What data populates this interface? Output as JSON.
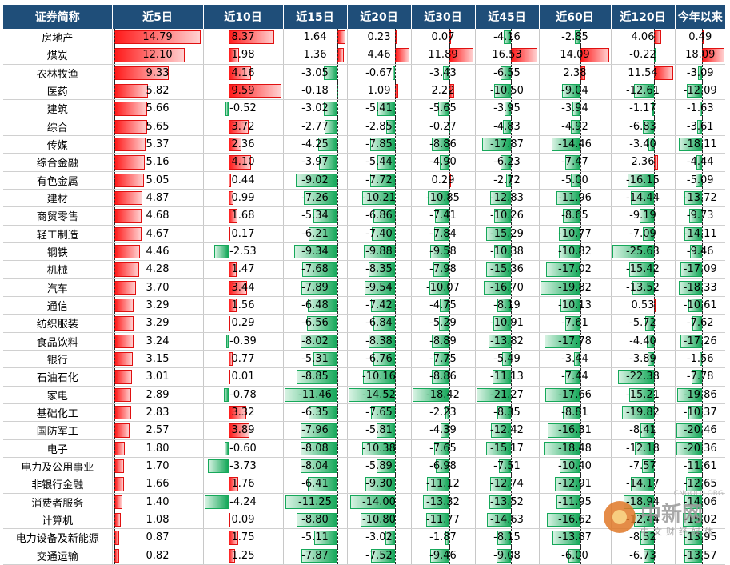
{
  "headers": [
    "证券简称",
    "近5日",
    "近10日",
    "近15日",
    "近20日",
    "近30日",
    "近45日",
    "近60日",
    "近120日",
    "今年以来"
  ],
  "colors": {
    "header_bg": "#1f4e79",
    "positive": "#ff1a1a",
    "negative": "#16a85a"
  },
  "rows": [
    {
      "name": "房地产",
      "values": [
        14.79,
        8.37,
        1.64,
        0.23,
        0.07,
        -4.16,
        -2.85,
        4.06,
        0.49
      ]
    },
    {
      "name": "煤炭",
      "values": [
        12.1,
        1.98,
        1.36,
        4.46,
        11.89,
        16.53,
        14.09,
        -0.22,
        18.09
      ]
    },
    {
      "name": "农林牧渔",
      "values": [
        9.33,
        4.16,
        -3.05,
        -0.67,
        -3.43,
        -6.55,
        2.38,
        11.54,
        -3.09
      ]
    },
    {
      "name": "医药",
      "values": [
        5.82,
        9.59,
        -0.18,
        1.09,
        2.22,
        -10.5,
        -9.04,
        -12.61,
        -12.09
      ]
    },
    {
      "name": "建筑",
      "values": [
        5.66,
        -0.52,
        -3.02,
        -5.41,
        -5.65,
        -3.95,
        -3.94,
        -1.17,
        -1.63
      ]
    },
    {
      "name": "综合",
      "values": [
        5.65,
        3.72,
        -2.77,
        -2.85,
        -0.27,
        -4.83,
        -4.92,
        -6.83,
        -3.61
      ]
    },
    {
      "name": "传媒",
      "values": [
        5.37,
        2.36,
        -4.25,
        -7.85,
        -8.86,
        -17.87,
        -14.46,
        -3.4,
        -18.11
      ]
    },
    {
      "name": "综合金融",
      "values": [
        5.16,
        4.1,
        -3.97,
        -5.44,
        -4.9,
        -6.23,
        -7.47,
        2.36,
        -4.44
      ]
    },
    {
      "name": "有色金属",
      "values": [
        5.05,
        0.44,
        -9.02,
        -7.72,
        0.29,
        -2.72,
        -5.0,
        -16.15,
        -5.09
      ]
    },
    {
      "name": "建材",
      "values": [
        4.87,
        0.99,
        -7.26,
        -10.21,
        -10.85,
        -12.83,
        -11.96,
        -14.44,
        -13.72
      ]
    },
    {
      "name": "商贸零售",
      "values": [
        4.68,
        1.68,
        -5.34,
        -6.86,
        -7.41,
        -10.26,
        -8.65,
        -9.19,
        -9.73
      ]
    },
    {
      "name": "轻工制造",
      "values": [
        4.67,
        0.17,
        -6.21,
        -7.4,
        -7.84,
        -15.29,
        -10.77,
        -7.09,
        -14.11
      ]
    },
    {
      "name": "钢铁",
      "values": [
        4.46,
        -2.53,
        -9.34,
        -9.88,
        -9.58,
        -10.38,
        -10.82,
        -25.63,
        -9.46
      ]
    },
    {
      "name": "机械",
      "values": [
        4.28,
        1.47,
        -7.68,
        -8.35,
        -7.98,
        -15.36,
        -17.02,
        -15.42,
        -17.09
      ]
    },
    {
      "name": "汽车",
      "values": [
        3.7,
        3.44,
        -7.89,
        -9.54,
        -10.07,
        -16.7,
        -19.82,
        -13.52,
        -18.33
      ]
    },
    {
      "name": "通信",
      "values": [
        3.29,
        1.56,
        -6.48,
        -7.42,
        -4.75,
        -8.19,
        -10.13,
        0.53,
        -10.61
      ]
    },
    {
      "name": "纺织服装",
      "values": [
        3.29,
        0.29,
        -6.56,
        -6.84,
        -5.29,
        -10.91,
        -7.61,
        -5.72,
        -7.62
      ]
    },
    {
      "name": "食品饮料",
      "values": [
        3.24,
        -0.39,
        -8.02,
        -8.38,
        -8.89,
        -13.82,
        -17.78,
        -4.4,
        -17.26
      ]
    },
    {
      "name": "银行",
      "values": [
        3.15,
        0.77,
        -5.31,
        -6.76,
        -7.75,
        -5.49,
        -3.44,
        -3.89,
        -1.56
      ]
    },
    {
      "name": "石油石化",
      "values": [
        3.01,
        0.01,
        -8.85,
        -10.16,
        -8.86,
        -11.13,
        -7.44,
        -22.38,
        -7.78
      ]
    },
    {
      "name": "家电",
      "values": [
        2.89,
        -0.78,
        -11.46,
        -14.52,
        -18.42,
        -21.27,
        -17.66,
        -15.21,
        -19.86
      ]
    },
    {
      "name": "基础化工",
      "values": [
        2.83,
        3.32,
        -6.35,
        -7.65,
        -2.23,
        -8.35,
        -8.81,
        -19.82,
        -10.37
      ]
    },
    {
      "name": "国防军工",
      "values": [
        2.57,
        3.89,
        -7.96,
        -5.81,
        -4.39,
        -12.42,
        -16.31,
        -8.41,
        -20.46
      ]
    },
    {
      "name": "电子",
      "values": [
        1.8,
        -0.6,
        -8.08,
        -10.38,
        -7.65,
        -15.17,
        -18.48,
        -12.18,
        -20.36
      ]
    },
    {
      "name": "电力及公用事业",
      "values": [
        1.7,
        -3.73,
        -8.04,
        -5.89,
        -6.98,
        -7.51,
        -10.4,
        -7.57,
        -11.61
      ]
    },
    {
      "name": "非银行金融",
      "values": [
        1.66,
        1.76,
        -6.41,
        -9.3,
        -11.12,
        -12.74,
        -12.91,
        -14.17,
        -12.65
      ]
    },
    {
      "name": "消费者服务",
      "values": [
        1.4,
        -4.24,
        -11.25,
        -14.0,
        -13.32,
        -13.52,
        -11.95,
        -18.94,
        -14.06
      ]
    },
    {
      "name": "计算机",
      "values": [
        1.08,
        0.09,
        -8.8,
        -10.8,
        -11.77,
        -14.63,
        -16.62,
        -12.44,
        -15.02
      ]
    },
    {
      "name": "电力设备及新能源",
      "values": [
        0.87,
        1.75,
        -5.11,
        -3.02,
        -1.87,
        -8.15,
        -13.87,
        -8.52,
        -13.95
      ]
    },
    {
      "name": "交通运输",
      "values": [
        0.82,
        1.25,
        -7.87,
        -7.52,
        -9.46,
        -9.08,
        -6.0,
        -6.73,
        -13.57
      ]
    }
  ],
  "watermark": {
    "title": "中新网",
    "sub": "中文财经媒体",
    "url": "CNGOLD.ORG"
  }
}
